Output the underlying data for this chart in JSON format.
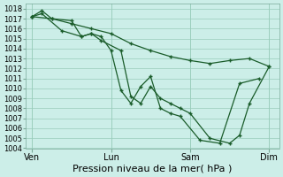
{
  "xlabel": "Pression niveau de la mer( hPa )",
  "bg_color": "#cceee8",
  "grid_color": "#99ccbb",
  "line_color": "#1a5c2a",
  "ylim": [
    1004,
    1018.5
  ],
  "ytick_min": 1004,
  "ytick_max": 1018,
  "xtick_labels": [
    "Ven",
    "Lun",
    "Sam",
    "Dim"
  ],
  "xtick_positions": [
    0.0,
    4.0,
    8.0,
    12.0
  ],
  "xlabel_fontsize": 8,
  "ytick_fontsize": 6,
  "xtick_fontsize": 7,
  "line1_x": [
    0.0,
    0.5,
    1.0,
    2.0,
    2.5,
    3.0,
    3.5,
    4.5,
    5.0,
    5.5,
    6.0,
    6.5,
    7.0,
    7.5,
    8.0,
    9.0,
    10.0,
    10.5,
    11.0,
    12.0
  ],
  "line1_y": [
    1017.2,
    1017.8,
    1017.0,
    1016.8,
    1015.2,
    1015.5,
    1014.8,
    1013.8,
    1009.2,
    1008.5,
    1010.2,
    1009.0,
    1008.5,
    1008.0,
    1007.5,
    1005.0,
    1004.5,
    1005.3,
    1008.5,
    1012.2
  ],
  "line2_x": [
    0.0,
    0.5,
    1.5,
    2.5,
    3.0,
    3.5,
    4.0,
    4.5,
    5.0,
    5.5,
    6.0,
    6.5,
    7.0,
    7.5,
    8.5,
    9.5,
    10.5,
    11.5
  ],
  "line2_y": [
    1017.2,
    1017.5,
    1015.8,
    1015.2,
    1015.5,
    1015.2,
    1013.8,
    1009.8,
    1008.5,
    1010.2,
    1011.2,
    1008.0,
    1007.5,
    1007.2,
    1004.8,
    1004.5,
    1010.5,
    1011.0
  ],
  "line3_x": [
    0.0,
    1.0,
    2.0,
    3.0,
    4.0,
    5.0,
    6.0,
    7.0,
    8.0,
    9.0,
    10.0,
    11.0,
    12.0
  ],
  "line3_y": [
    1017.2,
    1017.0,
    1016.5,
    1016.0,
    1015.5,
    1014.5,
    1013.8,
    1013.2,
    1012.8,
    1012.5,
    1012.8,
    1013.0,
    1012.2
  ]
}
